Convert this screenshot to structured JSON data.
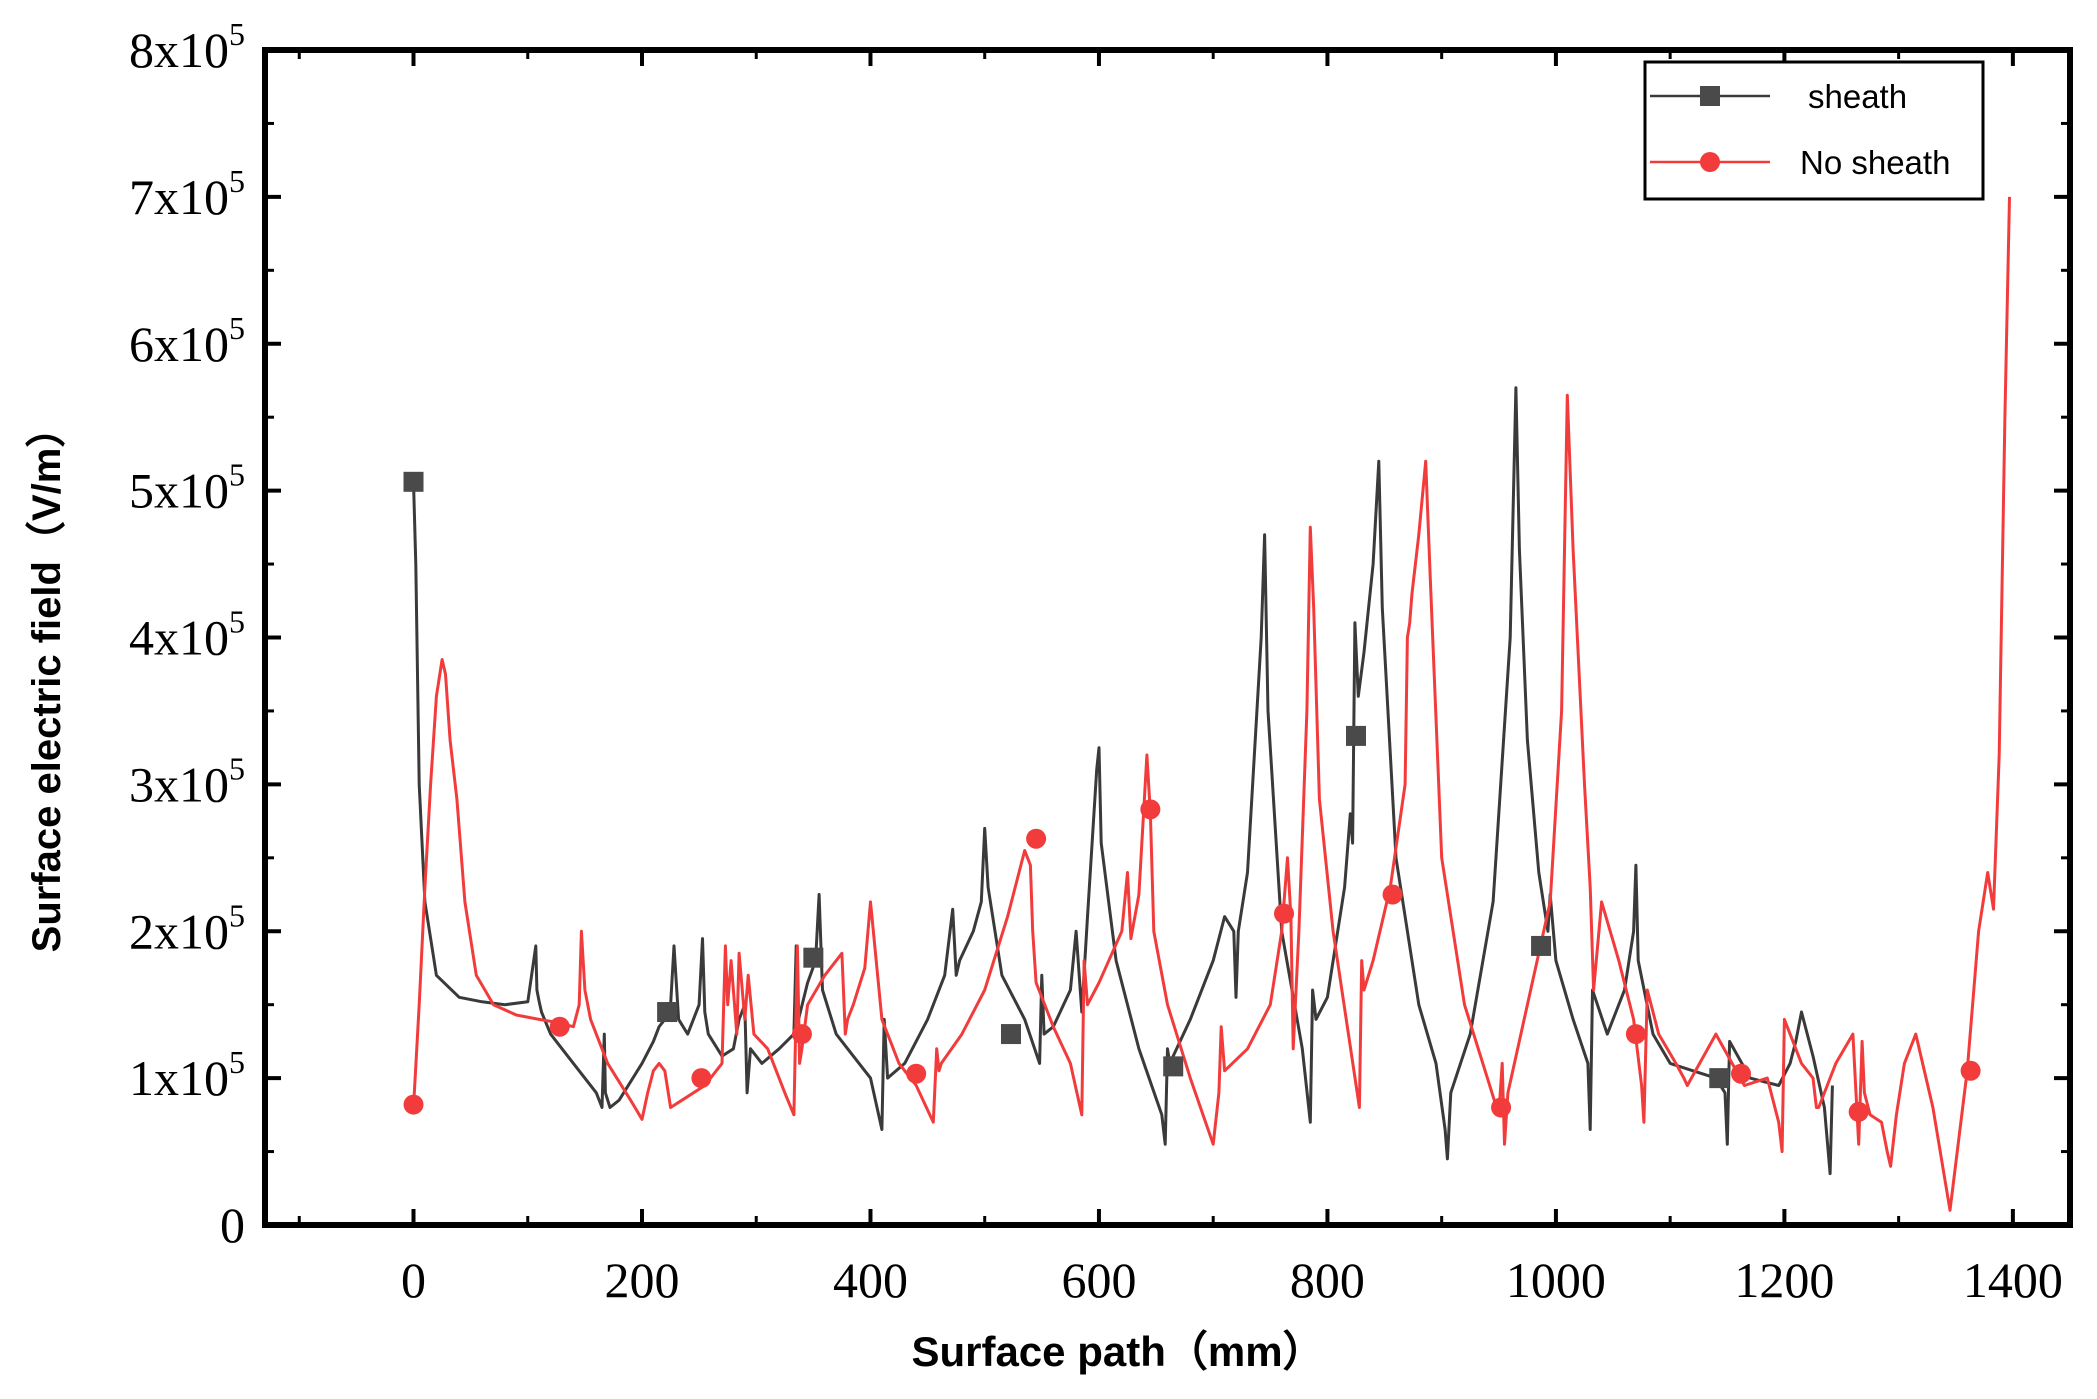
{
  "chart_data": {
    "type": "line",
    "xlabel": "Surface path（mm）",
    "ylabel": "Surface electric field（V/m）",
    "xlim": [
      -130,
      1450
    ],
    "ylim": [
      0,
      800000
    ],
    "x_ticks": [
      0,
      200,
      400,
      600,
      800,
      1000,
      1200,
      1400
    ],
    "x_tick_labels": [
      "0",
      "200",
      "400",
      "600",
      "800",
      "1000",
      "1200",
      "1400"
    ],
    "y_ticks": [
      0,
      100000,
      200000,
      300000,
      400000,
      500000,
      600000,
      700000,
      800000
    ],
    "y_tick_labels": [
      {
        "mant": "0",
        "exp": ""
      },
      {
        "mant": "1x10",
        "exp": "5"
      },
      {
        "mant": "2x10",
        "exp": "5"
      },
      {
        "mant": "3x10",
        "exp": "5"
      },
      {
        "mant": "4x10",
        "exp": "5"
      },
      {
        "mant": "5x10",
        "exp": "5"
      },
      {
        "mant": "6x10",
        "exp": "5"
      },
      {
        "mant": "7x10",
        "exp": "5"
      },
      {
        "mant": "8x10",
        "exp": "5"
      }
    ],
    "legend_position": "top-right",
    "grid": false,
    "series": [
      {
        "name": "sheath",
        "color": "#3a3a3a",
        "marker": "square",
        "x": [
          0,
          2,
          5,
          10,
          20,
          40,
          60,
          80,
          100,
          107,
          108,
          110,
          112,
          120,
          140,
          160,
          165,
          167,
          168,
          172,
          180,
          200,
          210,
          215,
          220,
          225,
          228,
          230,
          232,
          240,
          250,
          253,
          255,
          258,
          270,
          280,
          285,
          290,
          292,
          295,
          305,
          320,
          333,
          335,
          337,
          345,
          352,
          355,
          358,
          370,
          385,
          400,
          410,
          412,
          415,
          430,
          450,
          465,
          472,
          475,
          478,
          490,
          497,
          500,
          503,
          515,
          535,
          548,
          550,
          552,
          560,
          575,
          580,
          585,
          590,
          598,
          600,
          602,
          615,
          635,
          655,
          658,
          660,
          662,
          680,
          700,
          710,
          718,
          720,
          722,
          730,
          742,
          745,
          748,
          760,
          778,
          785,
          787,
          790,
          800,
          815,
          820,
          822,
          824,
          827,
          832,
          840,
          845,
          848,
          860,
          880,
          895,
          903,
          905,
          908,
          925,
          945,
          960,
          965,
          968,
          975,
          985,
          993,
          995,
          1000,
          1015,
          1028,
          1030,
          1032,
          1045,
          1060,
          1068,
          1070,
          1072,
          1085,
          1100,
          1120,
          1140,
          1148,
          1150,
          1152,
          1170,
          1195,
          1205,
          1210,
          1215,
          1225,
          1235,
          1240,
          1242
        ],
        "y": [
          506000,
          450000,
          300000,
          220000,
          170000,
          155000,
          152000,
          150000,
          152000,
          190000,
          160000,
          152000,
          145000,
          130000,
          110000,
          90000,
          80000,
          130000,
          90000,
          80000,
          85000,
          110000,
          125000,
          135000,
          140000,
          150000,
          190000,
          165000,
          140000,
          130000,
          150000,
          195000,
          145000,
          130000,
          115000,
          120000,
          140000,
          150000,
          90000,
          120000,
          110000,
          120000,
          130000,
          190000,
          140000,
          165000,
          180000,
          225000,
          160000,
          130000,
          115000,
          100000,
          65000,
          140000,
          100000,
          110000,
          140000,
          170000,
          215000,
          170000,
          180000,
          200000,
          220000,
          270000,
          230000,
          170000,
          140000,
          110000,
          170000,
          130000,
          135000,
          160000,
          200000,
          145000,
          210000,
          310000,
          325000,
          260000,
          180000,
          120000,
          75000,
          55000,
          120000,
          110000,
          140000,
          180000,
          210000,
          200000,
          155000,
          200000,
          240000,
          400000,
          470000,
          350000,
          200000,
          120000,
          70000,
          160000,
          140000,
          155000,
          230000,
          280000,
          260000,
          410000,
          360000,
          390000,
          450000,
          520000,
          420000,
          250000,
          150000,
          110000,
          65000,
          45000,
          90000,
          130000,
          220000,
          400000,
          570000,
          460000,
          330000,
          240000,
          200000,
          225000,
          180000,
          140000,
          110000,
          65000,
          160000,
          130000,
          160000,
          200000,
          245000,
          180000,
          130000,
          110000,
          105000,
          100000,
          90000,
          55000,
          125000,
          100000,
          95000,
          110000,
          125000,
          145000,
          115000,
          80000,
          35000,
          95000
        ]
      },
      {
        "name": "No sheath",
        "color": "#f23c3c",
        "marker": "circle",
        "x": [
          0,
          5,
          10,
          15,
          20,
          25,
          28,
          32,
          38,
          45,
          55,
          70,
          90,
          110,
          125,
          140,
          145,
          147,
          150,
          155,
          170,
          190,
          200,
          205,
          210,
          215,
          220,
          225,
          235,
          255,
          270,
          273,
          275,
          278,
          283,
          285,
          290,
          293,
          298,
          310,
          325,
          333,
          336,
          338,
          340,
          345,
          360,
          375,
          378,
          380,
          385,
          395,
          400,
          410,
          425,
          440,
          455,
          458,
          460,
          462,
          480,
          500,
          520,
          535,
          540,
          542,
          545,
          560,
          575,
          585,
          587,
          590,
          600,
          620,
          625,
          628,
          635,
          642,
          645,
          648,
          660,
          680,
          700,
          705,
          707,
          710,
          730,
          750,
          760,
          765,
          768,
          770,
          775,
          782,
          785,
          788,
          793,
          805,
          828,
          830,
          832,
          840,
          855,
          868,
          870,
          872,
          874,
          880,
          886,
          890,
          900,
          920,
          940,
          950,
          953,
          955,
          958,
          975,
          995,
          1005,
          1010,
          1015,
          1025,
          1030,
          1033,
          1040,
          1055,
          1068,
          1075,
          1077,
          1080,
          1090,
          1105,
          1112,
          1115,
          1140,
          1165,
          1185,
          1195,
          1198,
          1200,
          1215,
          1225,
          1228,
          1230,
          1245,
          1260,
          1265,
          1268,
          1270,
          1275,
          1285,
          1290,
          1293,
          1298,
          1305,
          1315,
          1330,
          1345,
          1360,
          1370,
          1378,
          1383,
          1388,
          1393,
          1397
        ],
        "y": [
          80000,
          150000,
          230000,
          300000,
          360000,
          385000,
          375000,
          330000,
          290000,
          220000,
          170000,
          150000,
          143000,
          140000,
          138000,
          135000,
          150000,
          200000,
          160000,
          140000,
          110000,
          85000,
          72000,
          90000,
          105000,
          110000,
          105000,
          80000,
          85000,
          95000,
          110000,
          190000,
          150000,
          180000,
          130000,
          185000,
          140000,
          170000,
          130000,
          120000,
          90000,
          75000,
          190000,
          110000,
          120000,
          150000,
          170000,
          185000,
          130000,
          140000,
          150000,
          175000,
          220000,
          140000,
          110000,
          95000,
          70000,
          120000,
          105000,
          110000,
          130000,
          160000,
          210000,
          255000,
          245000,
          200000,
          165000,
          135000,
          110000,
          75000,
          180000,
          150000,
          165000,
          200000,
          240000,
          195000,
          225000,
          320000,
          280000,
          200000,
          150000,
          100000,
          55000,
          90000,
          135000,
          105000,
          120000,
          150000,
          200000,
          250000,
          210000,
          120000,
          200000,
          350000,
          475000,
          420000,
          290000,
          200000,
          80000,
          180000,
          160000,
          180000,
          230000,
          300000,
          400000,
          410000,
          430000,
          470000,
          520000,
          440000,
          250000,
          150000,
          100000,
          75000,
          110000,
          55000,
          90000,
          150000,
          220000,
          350000,
          565000,
          460000,
          300000,
          230000,
          160000,
          220000,
          180000,
          140000,
          95000,
          70000,
          160000,
          130000,
          110000,
          100000,
          95000,
          130000,
          95000,
          100000,
          70000,
          50000,
          140000,
          110000,
          100000,
          80000,
          80000,
          110000,
          130000,
          55000,
          125000,
          90000,
          75000,
          70000,
          50000,
          40000,
          75000,
          110000,
          130000,
          80000,
          10000,
          105000,
          200000,
          240000,
          215000,
          320000,
          550000,
          700000
        ]
      }
    ],
    "markers": {
      "sheath": {
        "x": [
          0,
          222,
          350,
          523,
          665,
          825,
          987,
          1143
        ],
        "y": [
          506000,
          145000,
          182000,
          130000,
          108000,
          333000,
          190000,
          100000
        ]
      },
      "No sheath": {
        "x": [
          0,
          128,
          252,
          340,
          440,
          545,
          645,
          762,
          857,
          952,
          1070,
          1162,
          1265,
          1363
        ],
        "y": [
          82000,
          135000,
          100000,
          130000,
          103000,
          263000,
          283000,
          212000,
          225000,
          80000,
          130000,
          103000,
          77000,
          105000
        ]
      }
    }
  }
}
